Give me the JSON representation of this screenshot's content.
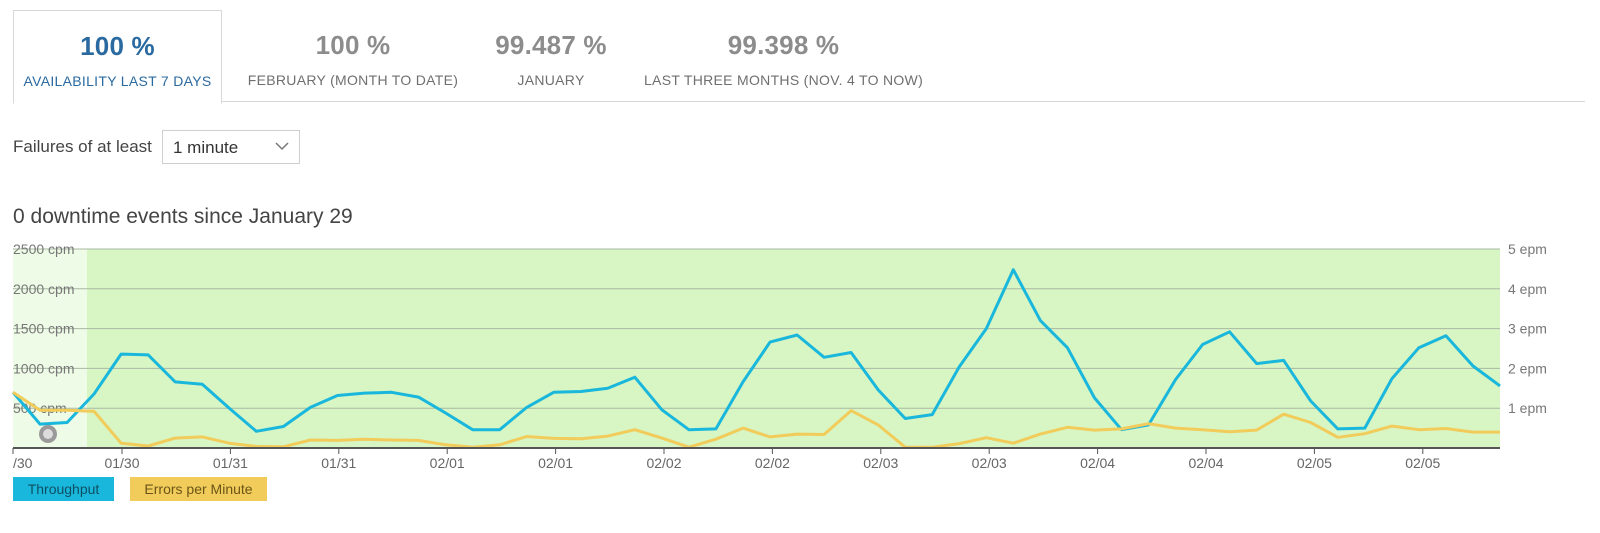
{
  "tabs": [
    {
      "value": "100 %",
      "label": "AVAILABILITY LAST 7 DAYS",
      "active": true
    },
    {
      "value": "100 %",
      "label": "FEBRUARY (MONTH TO DATE)",
      "active": false
    },
    {
      "value": "99.487 %",
      "label": "JANUARY",
      "active": false
    },
    {
      "value": "99.398 %",
      "label": "LAST THREE MONTHS (NOV. 4 TO NOW)",
      "active": false
    }
  ],
  "filter": {
    "label": "Failures of at least",
    "selected": "1 minute"
  },
  "events_heading": "0 downtime events since January 29",
  "chart_data": {
    "type": "line",
    "left_axis": {
      "ticks": [
        "2500 cpm",
        "2000 cpm",
        "1500 cpm",
        "1000 cpm",
        "500 cpm"
      ],
      "values": [
        2500,
        2000,
        1500,
        1000,
        500
      ],
      "ylim": [
        0,
        2500
      ]
    },
    "right_axis": {
      "ticks": [
        "5 epm",
        "4 epm",
        "3 epm",
        "2 epm",
        "1 epm"
      ],
      "values": [
        5,
        4,
        3,
        2,
        1
      ],
      "ylim": [
        0,
        5
      ]
    },
    "x_tick_labels": [
      "/30",
      "01/30",
      "01/31",
      "01/31",
      "02/01",
      "02/01",
      "02/02",
      "02/02",
      "02/03",
      "02/03",
      "02/04",
      "02/04",
      "02/05",
      "02/05"
    ],
    "series": [
      {
        "name": "Throughput",
        "color": "#1ab7dc",
        "axis": "left",
        "values": [
          700,
          300,
          320,
          680,
          1180,
          1170,
          830,
          800,
          500,
          210,
          270,
          510,
          660,
          690,
          700,
          640,
          440,
          230,
          230,
          510,
          700,
          710,
          750,
          890,
          480,
          230,
          240,
          830,
          1330,
          1420,
          1140,
          1200,
          730,
          370,
          420,
          1020,
          1500,
          2240,
          1600,
          1260,
          630,
          230,
          290,
          860,
          1300,
          1460,
          1060,
          1100,
          590,
          240,
          250,
          870,
          1260,
          1410,
          1030,
          780
        ]
      },
      {
        "name": "Errors per Minute",
        "color": "#f1cc5a",
        "axis": "right",
        "values": [
          1.4,
          0.95,
          0.95,
          0.92,
          0.12,
          0.05,
          0.25,
          0.28,
          0.12,
          0.04,
          0.03,
          0.2,
          0.19,
          0.22,
          0.2,
          0.19,
          0.08,
          0.02,
          0.08,
          0.29,
          0.24,
          0.23,
          0.3,
          0.46,
          0.25,
          0.02,
          0.22,
          0.5,
          0.28,
          0.35,
          0.34,
          0.94,
          0.58,
          0.02,
          0.02,
          0.11,
          0.26,
          0.12,
          0.35,
          0.52,
          0.45,
          0.48,
          0.61,
          0.5,
          0.46,
          0.41,
          0.45,
          0.85,
          0.64,
          0.27,
          0.36,
          0.55,
          0.46,
          0.49,
          0.4,
          0.4
        ]
      }
    ],
    "grid": true,
    "legend": "bottom-left"
  },
  "legend": {
    "throughput": "Throughput",
    "errors": "Errors per Minute"
  },
  "colors": {
    "accent": "#2a6aa0",
    "plot_background": "#d8f5c4",
    "throughput": "#1ab7dc",
    "errors": "#f1cc5a"
  }
}
